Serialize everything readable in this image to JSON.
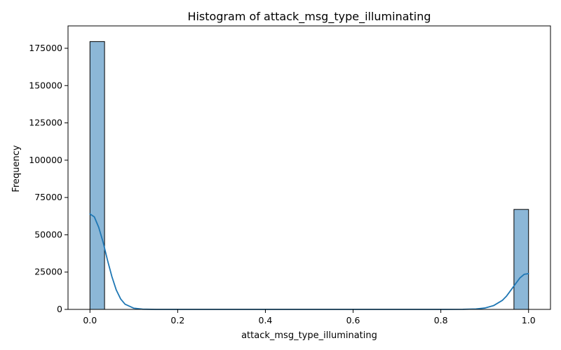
{
  "chart_data": {
    "type": "bar",
    "title": "Histogram of attack_msg_type_illuminating",
    "xlabel": "attack_msg_type_illuminating",
    "ylabel": "Frequency",
    "xlim": [
      -0.05,
      1.05
    ],
    "ylim": [
      0,
      190000
    ],
    "grid": false,
    "legend": "none",
    "xticks": [
      0.0,
      0.2,
      0.4,
      0.6,
      0.8,
      1.0
    ],
    "xtick_labels": [
      "0.0",
      "0.2",
      "0.4",
      "0.6",
      "0.8",
      "1.0"
    ],
    "yticks": [
      0,
      25000,
      50000,
      75000,
      100000,
      125000,
      150000,
      175000
    ],
    "ytick_labels": [
      "0",
      "25000",
      "50000",
      "75000",
      "100000",
      "125000",
      "150000",
      "175000"
    ],
    "bins": [
      {
        "start": 0.0,
        "end": 0.0333,
        "value": 179500
      },
      {
        "start": 0.9667,
        "end": 1.0,
        "value": 67000
      }
    ],
    "kde": {
      "x": [
        0.0,
        0.01,
        0.02,
        0.03,
        0.04,
        0.05,
        0.06,
        0.07,
        0.08,
        0.1,
        0.12,
        0.15,
        0.2,
        0.4,
        0.6,
        0.8,
        0.85,
        0.88,
        0.9,
        0.92,
        0.94,
        0.95,
        0.96,
        0.97,
        0.98,
        0.99,
        1.0
      ],
      "y": [
        64000,
        62000,
        55000,
        45000,
        33000,
        22000,
        13000,
        7000,
        3500,
        800,
        150,
        0,
        0,
        0,
        0,
        0,
        50,
        300,
        900,
        2500,
        6000,
        9000,
        13000,
        17000,
        21000,
        23500,
        24000
      ]
    },
    "colors": {
      "bar_fill": "#8cb7d7",
      "bar_edge": "#000000",
      "kde_line": "#1f77b4"
    }
  }
}
